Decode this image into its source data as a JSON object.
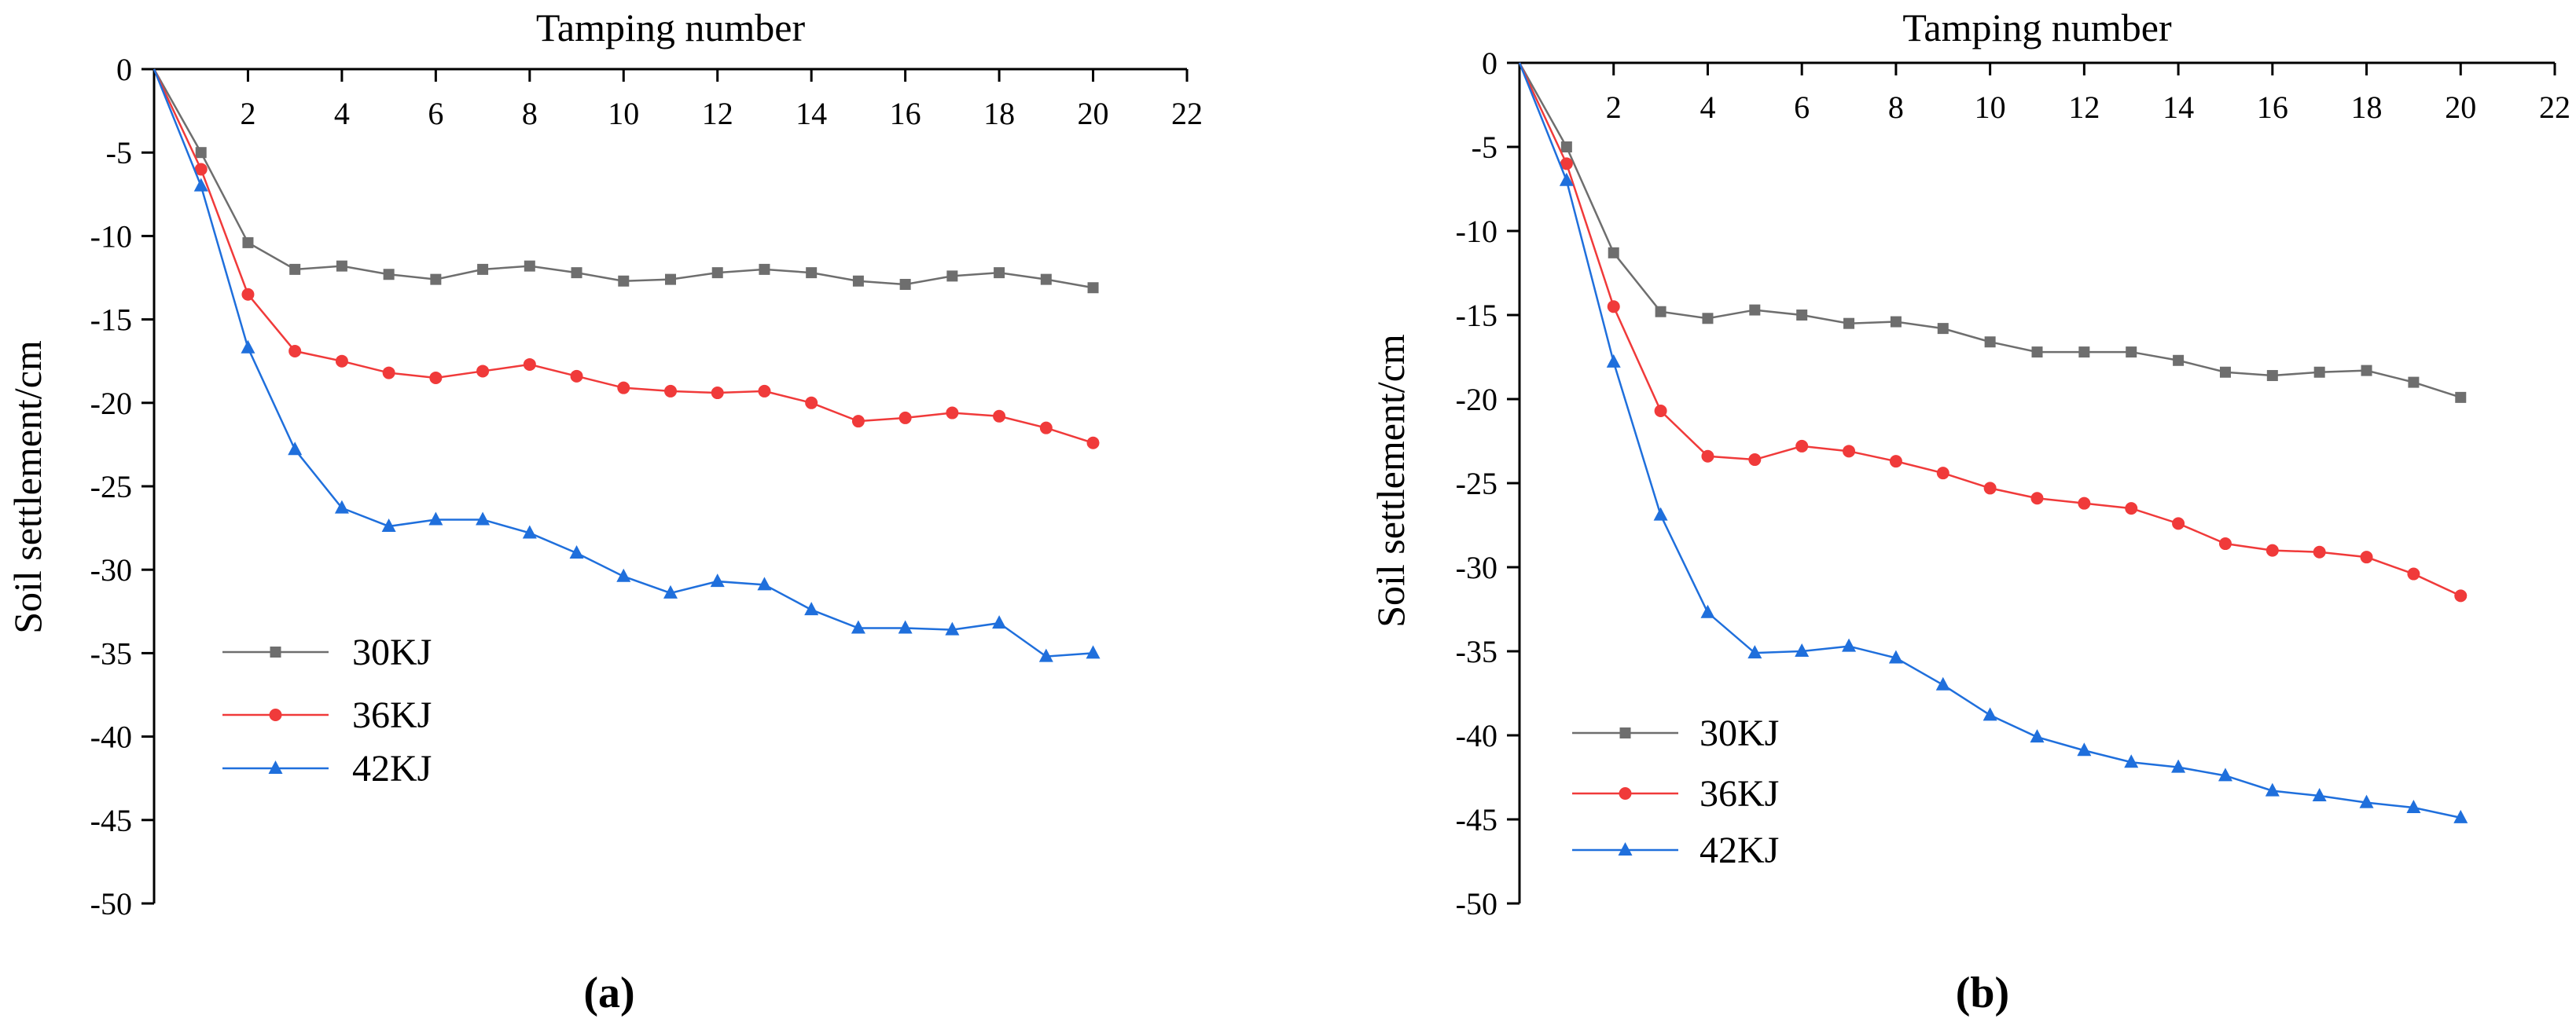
{
  "colors": {
    "axis": "#000000",
    "s30": "#6e6e6e",
    "s36": "#f03a3a",
    "s42": "#1f6fdc"
  },
  "chart_data": [
    {
      "type": "line",
      "panel_label": "(a)",
      "title": "",
      "xlabel": "Tamping number",
      "ylabel": "Soil settlement/cm",
      "xlim": [
        0,
        22
      ],
      "ylim": [
        -50,
        0
      ],
      "xticks": [
        2,
        4,
        6,
        8,
        10,
        12,
        14,
        16,
        18,
        20,
        22
      ],
      "yticks": [
        0,
        -5,
        -10,
        -15,
        -20,
        -25,
        -30,
        -35,
        -40,
        -45,
        -50
      ],
      "x_axis_position": "top",
      "grid": false,
      "legend_position": "lower-left",
      "x": [
        0,
        1,
        2,
        3,
        4,
        5,
        6,
        7,
        8,
        9,
        10,
        11,
        12,
        13,
        14,
        15,
        16,
        17,
        18,
        19,
        20
      ],
      "series": [
        {
          "name": "30KJ",
          "marker": "square",
          "color": "#6e6e6e",
          "values": [
            0,
            -5,
            -10.4,
            -12,
            -11.8,
            -12.3,
            -12.6,
            -12,
            -11.8,
            -12.2,
            -12.7,
            -12.6,
            -12.2,
            -12,
            -12.2,
            -12.7,
            -12.9,
            -12.4,
            -12.2,
            -12.6,
            -13.1
          ]
        },
        {
          "name": "36KJ",
          "marker": "circle",
          "color": "#f03a3a",
          "values": [
            0,
            -6,
            -13.5,
            -16.9,
            -17.5,
            -18.2,
            -18.5,
            -18.1,
            -17.7,
            -18.4,
            -19.1,
            -19.3,
            -19.4,
            -19.3,
            -20,
            -21.1,
            -20.9,
            -20.6,
            -20.8,
            -21.5,
            -22.4
          ]
        },
        {
          "name": "42KJ",
          "marker": "triangle",
          "color": "#1f6fdc",
          "values": [
            0,
            -7,
            -16.7,
            -22.8,
            -26.3,
            -27.4,
            -27,
            -27,
            -27.8,
            -29,
            -30.4,
            -31.4,
            -30.7,
            -30.9,
            -32.4,
            -33.5,
            -33.5,
            -33.6,
            -33.2,
            -35.2,
            -35
          ]
        }
      ]
    },
    {
      "type": "line",
      "panel_label": "(b)",
      "title": "",
      "xlabel": "Tamping number",
      "ylabel": "Soil settlement/cm",
      "xlim": [
        0,
        22
      ],
      "ylim": [
        -50,
        0
      ],
      "xticks": [
        2,
        4,
        6,
        8,
        10,
        12,
        14,
        16,
        18,
        20,
        22
      ],
      "yticks": [
        0,
        -5,
        -10,
        -15,
        -20,
        -25,
        -30,
        -35,
        -40,
        -45,
        -50
      ],
      "x_axis_position": "top",
      "grid": false,
      "legend_position": "lower-left",
      "x": [
        0,
        1,
        2,
        3,
        4,
        5,
        6,
        7,
        8,
        9,
        10,
        11,
        12,
        13,
        14,
        15,
        16,
        17,
        18,
        19,
        20
      ],
      "series": [
        {
          "name": "30KJ",
          "marker": "square",
          "color": "#6e6e6e",
          "values": [
            0,
            -5,
            -11.3,
            -14.8,
            -15.2,
            -14.7,
            -15,
            -15.5,
            -15.4,
            -15.8,
            -16.6,
            -17.2,
            -17.2,
            -17.2,
            -17.7,
            -18.4,
            -18.6,
            -18.4,
            -18.3,
            -19,
            -19.9
          ]
        },
        {
          "name": "36KJ",
          "marker": "circle",
          "color": "#f03a3a",
          "values": [
            0,
            -6,
            -14.5,
            -20.7,
            -23.4,
            -23.6,
            -22.8,
            -23.1,
            -23.7,
            -24.4,
            -25.3,
            -25.9,
            -26.2,
            -26.5,
            -27.4,
            -28.6,
            -29,
            -29.1,
            -29.4,
            -30.4,
            -31.7
          ]
        },
        {
          "name": "42KJ",
          "marker": "triangle",
          "color": "#1f6fdc",
          "values": [
            0,
            -7,
            -17.8,
            -26.9,
            -32.7,
            -35.1,
            -35,
            -34.7,
            -35.4,
            -37,
            -38.8,
            -40.1,
            -40.9,
            -41.6,
            -41.9,
            -42.4,
            -43.3,
            -43.6,
            -44,
            -44.3,
            -44.9
          ]
        }
      ]
    }
  ]
}
